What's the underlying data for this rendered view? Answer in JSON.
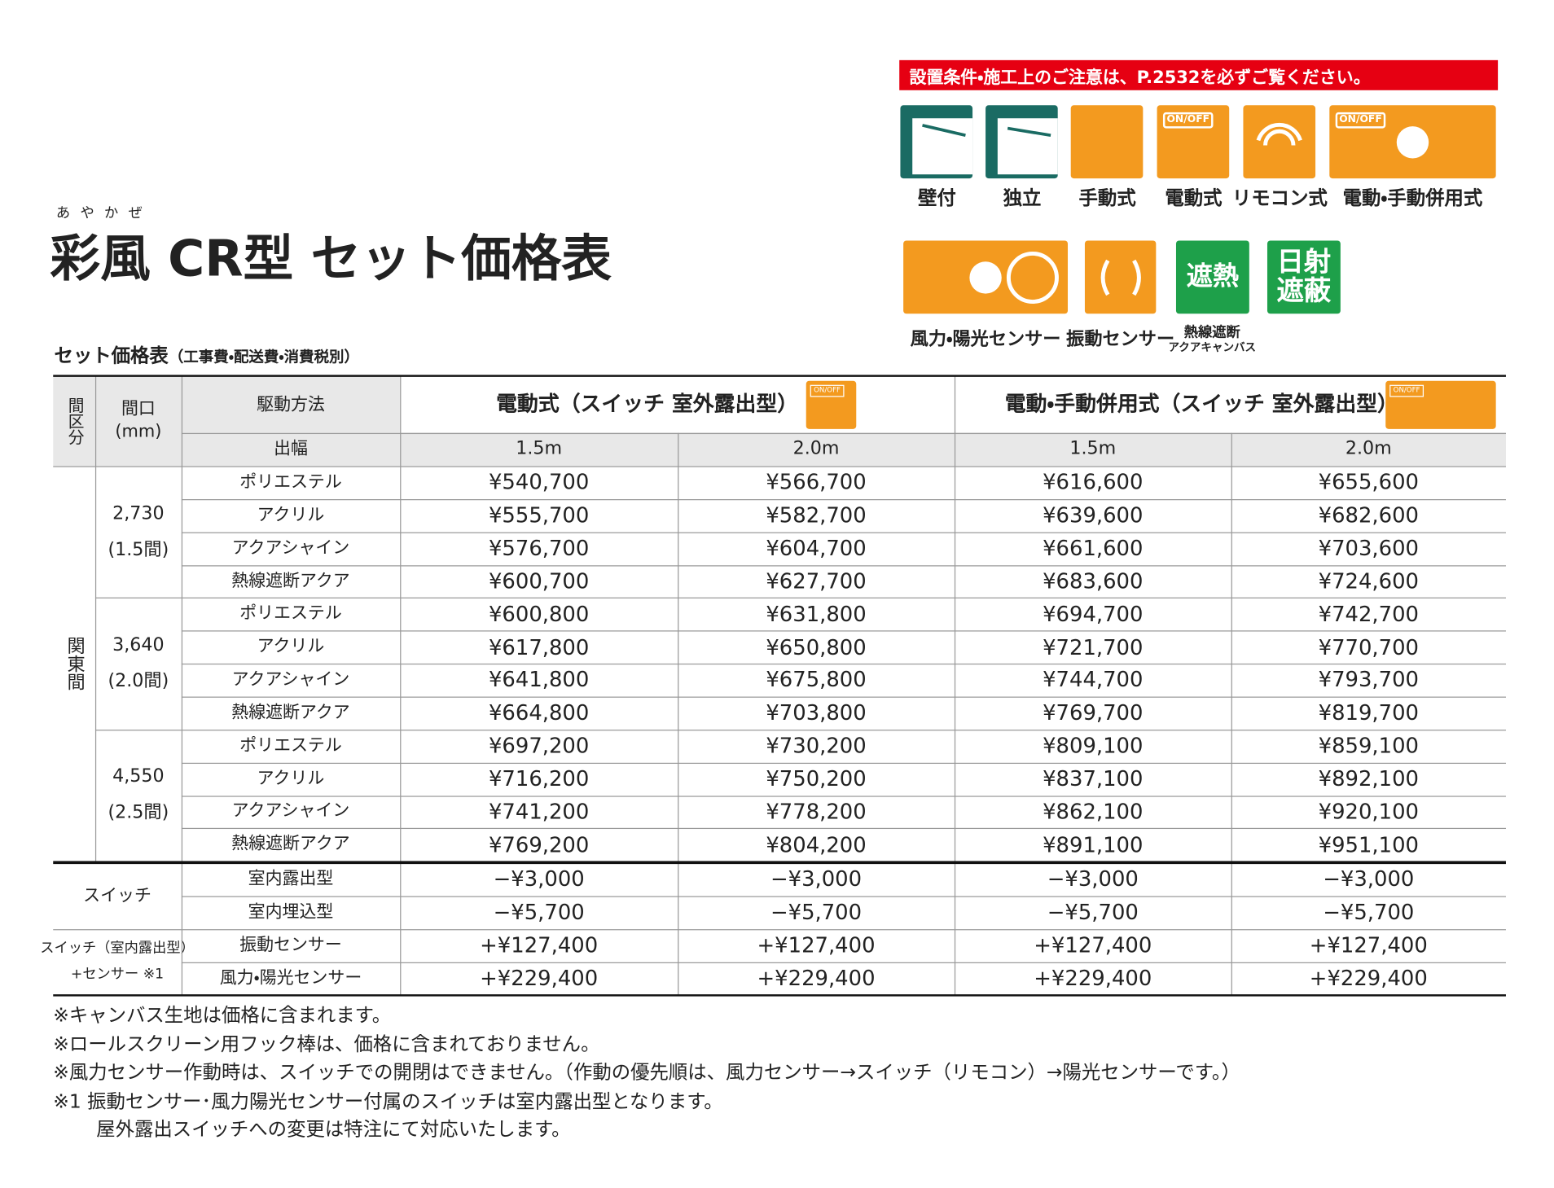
{
  "header": {
    "ruby": "あやかぜ",
    "title": "彩風 CR型 セット価格表",
    "notice": "設置条件・施工上のご注意は、P.2532を必ずご覧ください。"
  },
  "icon_text": {
    "switch": "ON/OFF",
    "heat": "遮熱",
    "shade": "日射遮蔽"
  },
  "icons_row1": [
    "壁付",
    "独立",
    "手動式",
    "電動式",
    "リモコン式",
    "電動・手動併用式"
  ],
  "icons_row2": [
    {
      "lines": [
        "風力・陽光センサー"
      ]
    },
    {
      "lines": [
        "振動センサー"
      ]
    },
    {
      "lines": [
        "熱線遮断",
        "アクアキャンバス"
      ]
    }
  ],
  "table": {
    "caption": "セット価格表",
    "caption_note": "（工事費・配送費・消費税別）",
    "head": {
      "zone": "間区分",
      "width": [
        "間口",
        "(mm)"
      ],
      "drive": "駆動方法",
      "projection": "出幅",
      "groups": [
        "電動式（スイッチ 室外露出型）",
        "電動・手動併用式（スイッチ 室外露出型）"
      ],
      "projections": [
        "1.5m",
        "2.0m",
        "1.5m",
        "2.0m"
      ]
    },
    "zone": "関東間",
    "groups": [
      {
        "width": "2,730",
        "ken": "(1.5間)",
        "rows": [
          {
            "material": "ポリエステル",
            "prices": [
              "¥540,700",
              "¥566,700",
              "¥616,600",
              "¥655,600"
            ]
          },
          {
            "material": "アクリル",
            "prices": [
              "¥555,700",
              "¥582,700",
              "¥639,600",
              "¥682,600"
            ]
          },
          {
            "material": "アクアシャイン",
            "prices": [
              "¥576,700",
              "¥604,700",
              "¥661,600",
              "¥703,600"
            ]
          },
          {
            "material": "熱線遮断アクア",
            "prices": [
              "¥600,700",
              "¥627,700",
              "¥683,600",
              "¥724,600"
            ]
          }
        ]
      },
      {
        "width": "3,640",
        "ken": "(2.0間)",
        "rows": [
          {
            "material": "ポリエステル",
            "prices": [
              "¥600,800",
              "¥631,800",
              "¥694,700",
              "¥742,700"
            ]
          },
          {
            "material": "アクリル",
            "prices": [
              "¥617,800",
              "¥650,800",
              "¥721,700",
              "¥770,700"
            ]
          },
          {
            "material": "アクアシャイン",
            "prices": [
              "¥641,800",
              "¥675,800",
              "¥744,700",
              "¥793,700"
            ]
          },
          {
            "material": "熱線遮断アクア",
            "prices": [
              "¥664,800",
              "¥703,800",
              "¥769,700",
              "¥819,700"
            ]
          }
        ]
      },
      {
        "width": "4,550",
        "ken": "(2.5間)",
        "rows": [
          {
            "material": "ポリエステル",
            "prices": [
              "¥697,200",
              "¥730,200",
              "¥809,100",
              "¥859,100"
            ]
          },
          {
            "material": "アクリル",
            "prices": [
              "¥716,200",
              "¥750,200",
              "¥837,100",
              "¥892,100"
            ]
          },
          {
            "material": "アクアシャイン",
            "prices": [
              "¥741,200",
              "¥778,200",
              "¥862,100",
              "¥920,100"
            ]
          },
          {
            "material": "熱線遮断アクア",
            "prices": [
              "¥769,200",
              "¥804,200",
              "¥891,100",
              "¥951,100"
            ]
          }
        ]
      }
    ],
    "options": [
      {
        "label_lines": [
          "スイッチ"
        ],
        "rows": [
          {
            "name": "室内露出型",
            "prices": [
              "−¥3,000",
              "−¥3,000",
              "−¥3,000",
              "−¥3,000"
            ]
          },
          {
            "name": "室内埋込型",
            "prices": [
              "−¥5,700",
              "−¥5,700",
              "−¥5,700",
              "−¥5,700"
            ]
          }
        ]
      },
      {
        "label_lines": [
          "スイッチ（室内露出型）",
          "+センサー ※1"
        ],
        "rows": [
          {
            "name": "振動センサー",
            "prices": [
              "+¥127,400",
              "+¥127,400",
              "+¥127,400",
              "+¥127,400"
            ]
          },
          {
            "name": "風力・陽光センサー",
            "prices": [
              "+¥229,400",
              "+¥229,400",
              "+¥229,400",
              "+¥229,400"
            ]
          }
        ]
      }
    ]
  },
  "notes": [
    "※キャンバス生地は価格に含まれます。",
    "※ロールスクリーン用フック棒は、価格に含まれておりません。",
    "※風力センサー作動時は、スイッチでの開閉はできません。（作動の優先順は、風力センサー→スイッチ（リモコン）→陽光センサーです。）",
    "※1 振動センサー･風力陽光センサー付属のスイッチは室内露出型となります。",
    "屋外露出スイッチへの変更は特注にて対応いたします。"
  ]
}
